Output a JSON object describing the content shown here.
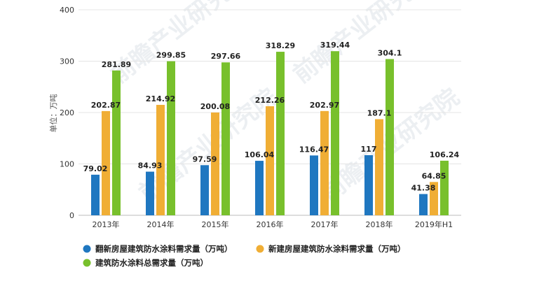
{
  "chart_data": {
    "type": "bar",
    "ylabel": "单位：万吨",
    "ylim": [
      0,
      400
    ],
    "yticks": [
      0,
      100,
      200,
      300,
      400
    ],
    "categories": [
      "2013年",
      "2014年",
      "2015年",
      "2016年",
      "2017年",
      "2018年",
      "2019年H1"
    ],
    "series": [
      {
        "name": "翻新房屋建筑防水涂料需求量（万吨）",
        "color": "#1f77c0",
        "values": [
          79.02,
          84.93,
          97.59,
          106.04,
          116.47,
          117,
          41.38
        ],
        "labels": [
          "79.02",
          "84.93",
          "97.59",
          "106.04",
          "116.47",
          "117",
          "41.38"
        ]
      },
      {
        "name": "新建房屋建筑防水涂料需求量（万吨）",
        "color": "#f0ae35",
        "values": [
          202.87,
          214.92,
          200.08,
          212.26,
          202.97,
          187.1,
          64.85
        ],
        "labels": [
          "202.87",
          "214.92",
          "200.08",
          "212.26",
          "202.97",
          "187.1",
          "64.85"
        ]
      },
      {
        "name": "建筑防水涂料总需求量（万吨）",
        "color": "#78c02c",
        "values": [
          281.89,
          299.85,
          297.66,
          318.29,
          319.44,
          304.1,
          106.24
        ],
        "labels": [
          "281.89",
          "299.85",
          "297.66",
          "318.29",
          "319.44",
          "304.1",
          "106.24"
        ]
      }
    ],
    "grid": true,
    "legend_position": "bottom",
    "watermark": "前瞻产业研究院"
  }
}
